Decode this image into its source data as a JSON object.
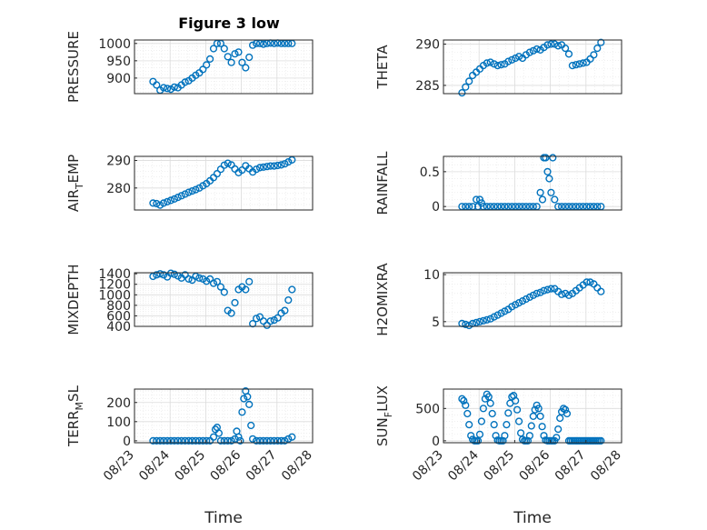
{
  "figure": {
    "title": "Figure 3 low",
    "marker_color": "#0072BD",
    "grid": true
  },
  "chart_data": [
    {
      "type": "scatter",
      "name": "pressure",
      "ylabel": "PRESSURE",
      "ylabel_sub": "",
      "ylim": [
        855,
        1010
      ],
      "yticks": [
        900,
        950,
        1000
      ],
      "xlim": [
        0,
        5
      ],
      "xticks": [],
      "x": [
        0.52,
        0.62,
        0.72,
        0.82,
        0.92,
        1.02,
        1.12,
        1.22,
        1.32,
        1.42,
        1.52,
        1.62,
        1.72,
        1.82,
        1.92,
        2.02,
        2.12,
        2.22,
        2.32,
        2.42,
        2.52,
        2.62,
        2.72,
        2.82,
        2.92,
        3.02,
        3.12,
        3.22,
        3.32,
        3.42,
        3.52,
        3.62,
        3.72,
        3.82,
        3.92,
        4.02,
        4.12,
        4.22,
        4.32,
        4.42
      ],
      "y": [
        890,
        880,
        865,
        872,
        870,
        868,
        874,
        872,
        880,
        888,
        892,
        900,
        908,
        915,
        925,
        938,
        955,
        985,
        1000,
        1000,
        985,
        962,
        945,
        970,
        975,
        945,
        930,
        960,
        995,
        1000,
        1000,
        998,
        1000,
        1001,
        1000,
        1001,
        1000,
        1000,
        1000,
        1000
      ]
    },
    {
      "type": "scatter",
      "name": "theta",
      "ylabel": "THETA",
      "ylabel_sub": "",
      "ylim": [
        284,
        290.5
      ],
      "yticks": [
        285,
        290
      ],
      "xlim": [
        0,
        5
      ],
      "xticks": [],
      "x": [
        0.52,
        0.62,
        0.72,
        0.82,
        0.92,
        1.02,
        1.12,
        1.22,
        1.32,
        1.42,
        1.52,
        1.62,
        1.72,
        1.82,
        1.92,
        2.02,
        2.12,
        2.22,
        2.32,
        2.42,
        2.52,
        2.62,
        2.72,
        2.82,
        2.92,
        3.02,
        3.12,
        3.22,
        3.32,
        3.42,
        3.52,
        3.62,
        3.72,
        3.82,
        3.92,
        4.02,
        4.12,
        4.22,
        4.32,
        4.42
      ],
      "y": [
        284.1,
        284.8,
        285.5,
        286.2,
        286.6,
        287.0,
        287.4,
        287.7,
        287.8,
        287.6,
        287.4,
        287.5,
        287.6,
        287.9,
        288.1,
        288.3,
        288.5,
        288.3,
        288.7,
        289.0,
        289.2,
        289.4,
        289.3,
        289.6,
        289.9,
        290.0,
        290.0,
        289.8,
        289.9,
        289.5,
        288.8,
        287.4,
        287.5,
        287.6,
        287.7,
        287.8,
        288.2,
        288.7,
        289.5,
        290.2
      ]
    },
    {
      "type": "scatter",
      "name": "air-temp",
      "ylabel": "AIR",
      "ylabel_sub": "T",
      "ylabel_rest": "EMP",
      "ylim": [
        272,
        291.5
      ],
      "yticks": [
        280,
        290
      ],
      "xlim": [
        0,
        5
      ],
      "xticks": [],
      "x": [
        0.52,
        0.62,
        0.72,
        0.82,
        0.92,
        1.02,
        1.12,
        1.22,
        1.32,
        1.42,
        1.52,
        1.62,
        1.72,
        1.82,
        1.92,
        2.02,
        2.12,
        2.22,
        2.32,
        2.42,
        2.52,
        2.62,
        2.72,
        2.82,
        2.92,
        3.02,
        3.12,
        3.22,
        3.32,
        3.42,
        3.52,
        3.62,
        3.72,
        3.82,
        3.92,
        4.02,
        4.12,
        4.22,
        4.32,
        4.42
      ],
      "y": [
        274.5,
        274.3,
        273.8,
        274.5,
        275.0,
        275.5,
        276.0,
        276.6,
        277.2,
        277.8,
        278.4,
        278.9,
        279.4,
        280.0,
        280.8,
        281.6,
        282.6,
        283.8,
        285.2,
        286.8,
        288.3,
        289.0,
        288.4,
        286.9,
        285.6,
        286.5,
        288.1,
        287.0,
        285.8,
        286.8,
        287.4,
        287.6,
        287.8,
        288.0,
        288.0,
        288.2,
        288.4,
        288.8,
        289.5,
        290.2
      ]
    },
    {
      "type": "scatter",
      "name": "rainfall",
      "ylabel": "RAINFALL",
      "ylabel_sub": "",
      "ylim": [
        -0.05,
        0.72
      ],
      "yticks": [
        0,
        0.5
      ],
      "ytick_labels": [
        "0",
        "0.5"
      ],
      "xlim": [
        0,
        5
      ],
      "xticks": [],
      "x": [
        0.52,
        0.62,
        0.72,
        0.82,
        0.92,
        0.97,
        1.02,
        1.07,
        1.12,
        1.22,
        1.32,
        1.42,
        1.52,
        1.62,
        1.72,
        1.82,
        1.92,
        2.02,
        2.12,
        2.22,
        2.32,
        2.42,
        2.52,
        2.62,
        2.72,
        2.78,
        2.82,
        2.87,
        2.92,
        2.97,
        3.02,
        3.07,
        3.12,
        3.22,
        3.32,
        3.42,
        3.52,
        3.62,
        3.72,
        3.82,
        3.92,
        4.02,
        4.12,
        4.22,
        4.32,
        4.42
      ],
      "y": [
        0,
        0,
        0,
        0,
        0.1,
        0,
        0.1,
        0.05,
        0,
        0,
        0,
        0,
        0,
        0,
        0,
        0,
        0,
        0,
        0,
        0,
        0,
        0,
        0,
        0,
        0.2,
        0.1,
        0.7,
        0.7,
        0.5,
        0.4,
        0.2,
        0.7,
        0.1,
        0,
        0,
        0,
        0,
        0,
        0,
        0,
        0,
        0,
        0,
        0,
        0,
        0
      ]
    },
    {
      "type": "scatter",
      "name": "mixdepth",
      "ylabel": "MIXDEPTH",
      "ylabel_sub": "",
      "ylim": [
        400,
        1420
      ],
      "yticks": [
        400,
        600,
        800,
        1000,
        1200,
        1400
      ],
      "xlim": [
        0,
        5
      ],
      "xticks": [],
      "x": [
        0.52,
        0.62,
        0.72,
        0.82,
        0.92,
        1.02,
        1.12,
        1.22,
        1.32,
        1.42,
        1.52,
        1.62,
        1.72,
        1.82,
        1.92,
        2.02,
        2.12,
        2.22,
        2.32,
        2.42,
        2.52,
        2.62,
        2.72,
        2.82,
        2.92,
        3.02,
        3.12,
        3.22,
        3.32,
        3.42,
        3.52,
        3.62,
        3.72,
        3.82,
        3.92,
        4.02,
        4.12,
        4.22,
        4.32,
        4.42
      ],
      "y": [
        1350,
        1380,
        1400,
        1380,
        1340,
        1410,
        1390,
        1360,
        1320,
        1380,
        1300,
        1280,
        1350,
        1320,
        1300,
        1260,
        1300,
        1220,
        1250,
        1150,
        1050,
        700,
        650,
        850,
        1100,
        1150,
        1100,
        1250,
        450,
        550,
        580,
        500,
        420,
        500,
        520,
        560,
        650,
        700,
        900,
        1100
      ]
    },
    {
      "type": "scatter",
      "name": "h2o-mixra",
      "ylabel": "H2OMIXRA",
      "ylabel_sub": "",
      "ylim": [
        4.5,
        10.2
      ],
      "yticks": [
        5,
        10
      ],
      "xlim": [
        0,
        5
      ],
      "xticks": [],
      "x": [
        0.52,
        0.62,
        0.72,
        0.82,
        0.92,
        1.02,
        1.12,
        1.22,
        1.32,
        1.42,
        1.52,
        1.62,
        1.72,
        1.82,
        1.92,
        2.02,
        2.12,
        2.22,
        2.32,
        2.42,
        2.52,
        2.62,
        2.72,
        2.82,
        2.92,
        3.02,
        3.12,
        3.22,
        3.32,
        3.42,
        3.52,
        3.62,
        3.72,
        3.82,
        3.92,
        4.02,
        4.12,
        4.22,
        4.32,
        4.42
      ],
      "y": [
        4.8,
        4.7,
        4.6,
        4.8,
        4.9,
        5.0,
        5.1,
        5.2,
        5.3,
        5.5,
        5.7,
        5.9,
        6.1,
        6.3,
        6.6,
        6.8,
        7.0,
        7.2,
        7.4,
        7.6,
        7.8,
        8.0,
        8.1,
        8.3,
        8.4,
        8.5,
        8.5,
        8.2,
        7.9,
        8.0,
        7.8,
        8.0,
        8.3,
        8.6,
        8.9,
        9.2,
        9.2,
        9.0,
        8.6,
        8.2
      ]
    },
    {
      "type": "scatter",
      "name": "terr-msl",
      "ylabel": "TERR",
      "ylabel_sub": "M",
      "ylabel_rest": "SL",
      "ylim": [
        -10,
        270
      ],
      "yticks": [
        0,
        100,
        200
      ],
      "xlim": [
        0,
        5
      ],
      "xticks": [
        0,
        1,
        2,
        3,
        4,
        5
      ],
      "xtick_labels": [
        "08/23",
        "08/24",
        "08/25",
        "08/26",
        "08/27",
        "08/28"
      ],
      "xlabel": "Time",
      "x": [
        0.52,
        0.62,
        0.72,
        0.82,
        0.92,
        1.02,
        1.12,
        1.22,
        1.32,
        1.42,
        1.52,
        1.62,
        1.72,
        1.82,
        1.92,
        2.02,
        2.12,
        2.22,
        2.27,
        2.32,
        2.37,
        2.42,
        2.52,
        2.62,
        2.72,
        2.82,
        2.87,
        2.92,
        2.97,
        3.02,
        3.07,
        3.12,
        3.17,
        3.22,
        3.27,
        3.32,
        3.42,
        3.52,
        3.62,
        3.72,
        3.82,
        3.92,
        4.02,
        4.12,
        4.22,
        4.32,
        4.42
      ],
      "y": [
        0,
        0,
        0,
        0,
        0,
        0,
        0,
        0,
        0,
        0,
        0,
        0,
        0,
        0,
        0,
        0,
        0,
        20,
        60,
        70,
        40,
        0,
        0,
        0,
        0,
        10,
        50,
        20,
        0,
        150,
        220,
        260,
        230,
        190,
        80,
        10,
        0,
        0,
        0,
        0,
        0,
        0,
        0,
        0,
        0,
        10,
        20
      ]
    },
    {
      "type": "scatter",
      "name": "sun-flux",
      "ylabel": "SUN",
      "ylabel_sub": "F",
      "ylabel_rest": "LUX",
      "ylim": [
        -30,
        800
      ],
      "yticks": [
        0,
        500
      ],
      "xlim": [
        0,
        5
      ],
      "xticks": [
        0,
        1,
        2,
        3,
        4,
        5
      ],
      "xtick_labels": [
        "08/23",
        "08/24",
        "08/25",
        "08/26",
        "08/27",
        "08/28"
      ],
      "xlabel": "Time",
      "x": [
        0.52,
        0.57,
        0.62,
        0.67,
        0.72,
        0.77,
        0.82,
        0.87,
        0.92,
        0.97,
        1.02,
        1.07,
        1.12,
        1.17,
        1.22,
        1.27,
        1.32,
        1.37,
        1.42,
        1.47,
        1.52,
        1.57,
        1.62,
        1.67,
        1.72,
        1.77,
        1.82,
        1.87,
        1.92,
        1.97,
        2.02,
        2.07,
        2.12,
        2.17,
        2.22,
        2.27,
        2.32,
        2.37,
        2.42,
        2.47,
        2.52,
        2.57,
        2.62,
        2.67,
        2.72,
        2.77,
        2.82,
        2.87,
        2.92,
        2.97,
        3.02,
        3.07,
        3.12,
        3.17,
        3.22,
        3.27,
        3.32,
        3.37,
        3.42,
        3.47,
        3.52,
        3.57,
        3.62,
        3.67,
        3.72,
        3.77,
        3.82,
        3.87,
        3.92,
        3.97,
        4.02,
        4.07,
        4.12,
        4.17,
        4.22,
        4.27,
        4.32,
        4.37,
        4.42
      ],
      "y": [
        650,
        620,
        550,
        420,
        250,
        80,
        20,
        0,
        0,
        0,
        100,
        300,
        500,
        650,
        720,
        680,
        580,
        420,
        250,
        80,
        10,
        0,
        0,
        0,
        80,
        250,
        430,
        580,
        680,
        700,
        620,
        480,
        300,
        120,
        20,
        0,
        0,
        0,
        80,
        230,
        380,
        480,
        550,
        500,
        380,
        220,
        80,
        10,
        0,
        0,
        0,
        0,
        0,
        50,
        180,
        350,
        450,
        500,
        480,
        420,
        0,
        0,
        0,
        0,
        0,
        0,
        0,
        0,
        0,
        0,
        0,
        0,
        0,
        0,
        0,
        0,
        0,
        0,
        0
      ]
    }
  ]
}
